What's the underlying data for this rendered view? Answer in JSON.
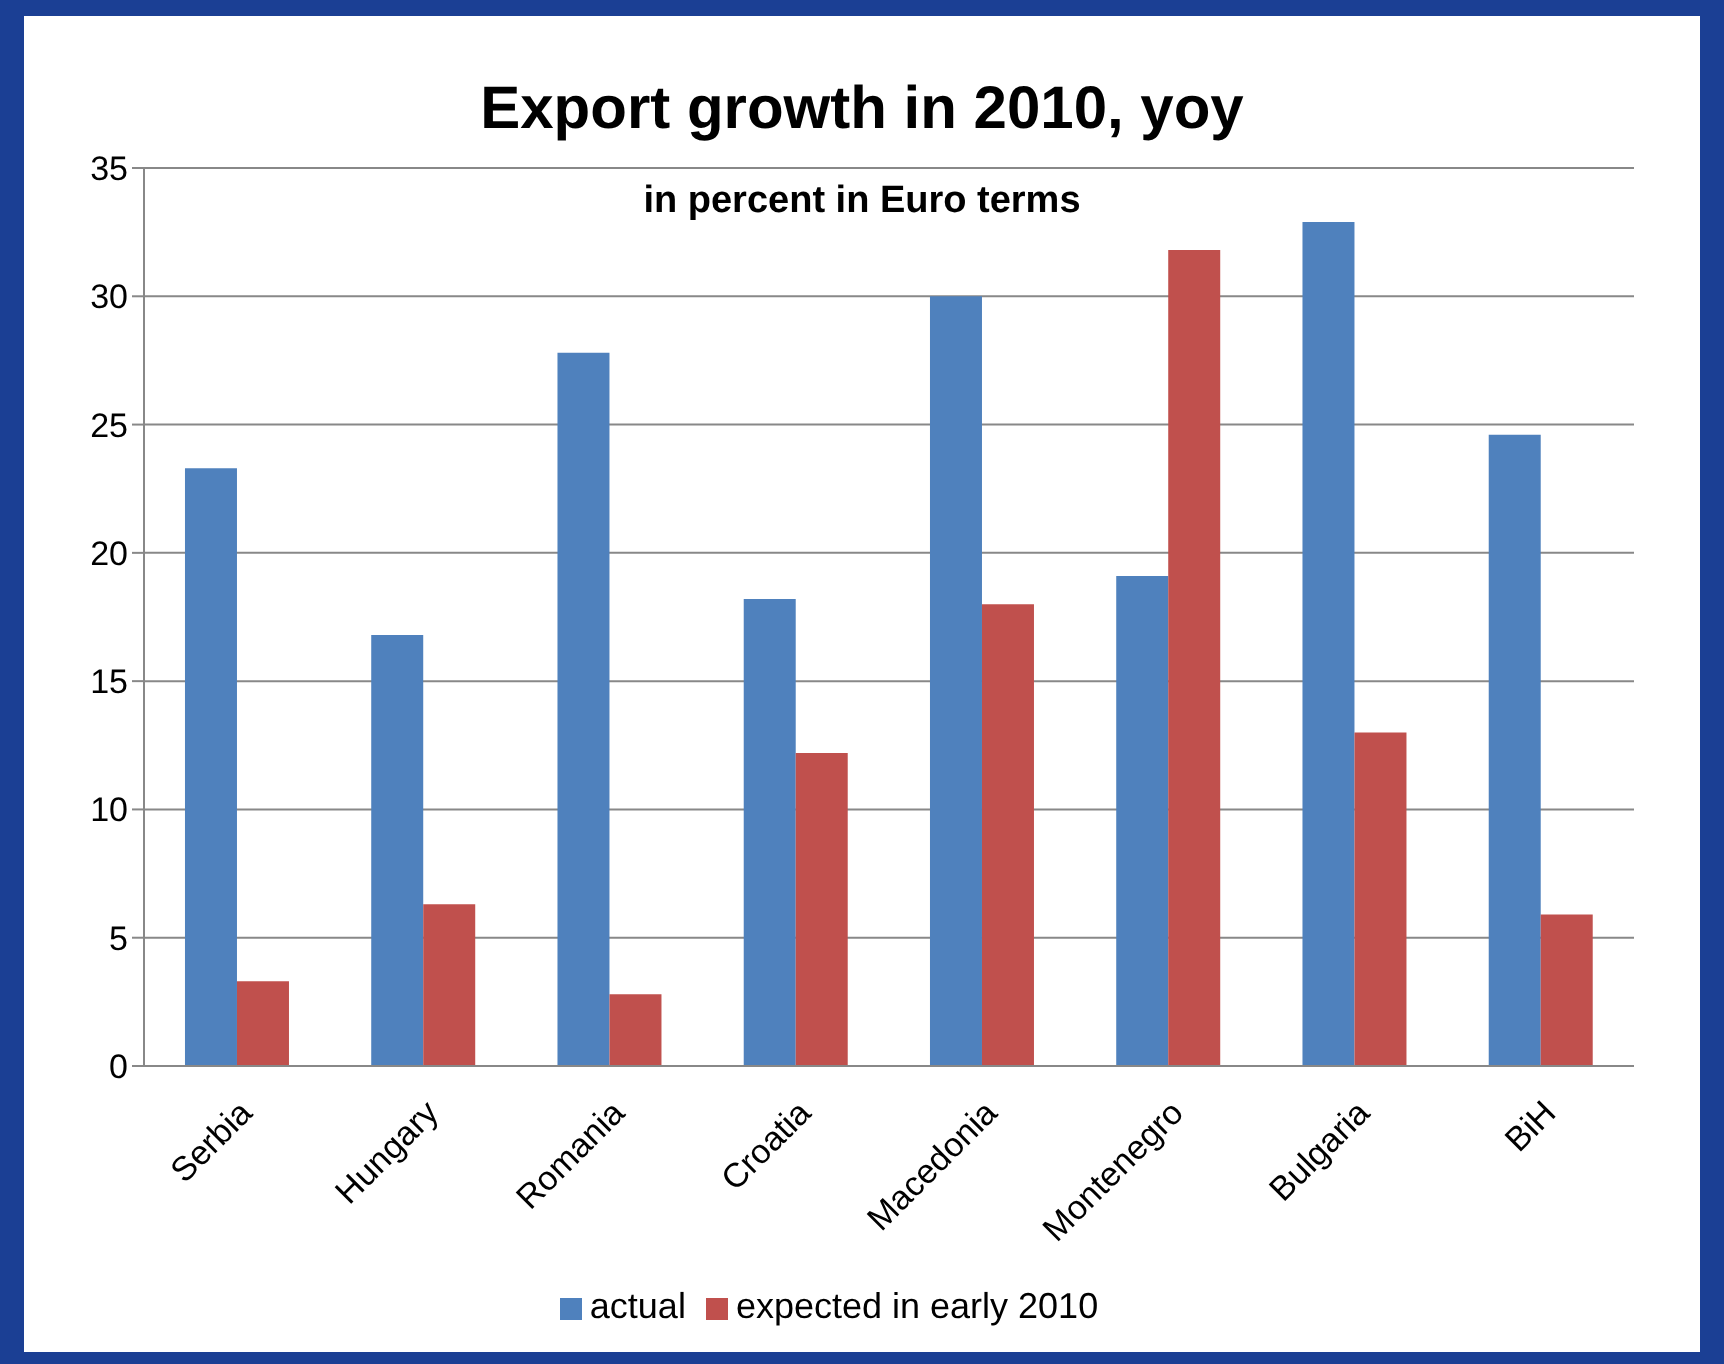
{
  "chart_data": {
    "type": "bar",
    "title": "Export growth in 2010, yoy",
    "subtitle": "in percent  in Euro terms",
    "categories": [
      "Serbia",
      "Hungary",
      "Romania",
      "Croatia",
      "Macedonia",
      "Montenegro",
      "Bulgaria",
      "BiH"
    ],
    "series": [
      {
        "name": "actual",
        "color": "#4f81bd",
        "values": [
          23.3,
          16.8,
          27.8,
          18.2,
          30.0,
          19.1,
          32.9,
          24.6
        ]
      },
      {
        "name": "expected in early 2010",
        "color": "#c0504d",
        "values": [
          3.3,
          6.3,
          2.8,
          12.2,
          18.0,
          31.8,
          13.0,
          5.9
        ]
      }
    ],
    "ylim": [
      0,
      35
    ],
    "yticks": [
      0,
      5,
      10,
      15,
      20,
      25,
      30,
      35
    ],
    "grid": "y",
    "legend": "bottom"
  }
}
